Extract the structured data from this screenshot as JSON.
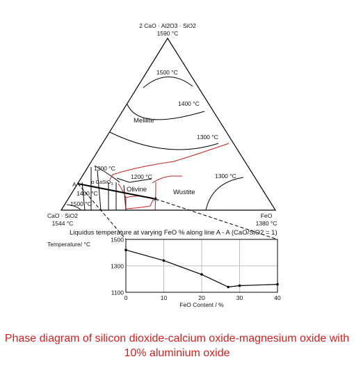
{
  "diagram": {
    "apex_top": {
      "name": "2 CaO · Al2O3 · SiO2",
      "temp": "1590 °C"
    },
    "apex_left": {
      "name": "CaO · SiO2",
      "temp": "1544 °C"
    },
    "apex_right": {
      "name": "FeO",
      "temp": "1380 °C"
    },
    "isotherms": [
      "1500 °C",
      "1400 °C",
      "1300 °C",
      "1300 °C",
      "1300 °C",
      "1200 °C",
      "1400 °C",
      "1500 °C"
    ],
    "phases": [
      "Melilite",
      "Olivine",
      "Wustite",
      "α CaSiO",
      "3"
    ],
    "points": [
      "A",
      "A"
    ]
  },
  "chart_title": "Liquidus temperature at varying FeO % along line A - A (CaO/SiO2 = 1)",
  "chart_data": {
    "type": "line",
    "title": "Liquidus temperature at varying FeO % along line A - A (CaO/SiO2 = 1)",
    "xlabel": "FeO Content / %",
    "ylabel": "Temperature/ °C",
    "x": [
      0,
      10,
      20,
      27,
      30,
      40
    ],
    "y": [
      1420,
      1340,
      1235,
      1140,
      1150,
      1160
    ],
    "xlim": [
      0,
      40
    ],
    "ylim": [
      1100,
      1500
    ],
    "xticks": [
      "0",
      "10",
      "20",
      "30",
      "40"
    ],
    "yticks": [
      "1100",
      "1300",
      "1500"
    ],
    "grid": true,
    "line_color": "#000000"
  },
  "caption": "Phase diagram of silicon dioxide-calcium oxide-magnesium oxide with 10% aluminium oxide",
  "colors": {
    "boundary_red": "#c22222",
    "caption_red": "#d21f1f",
    "grid": "#bdbdbd"
  }
}
